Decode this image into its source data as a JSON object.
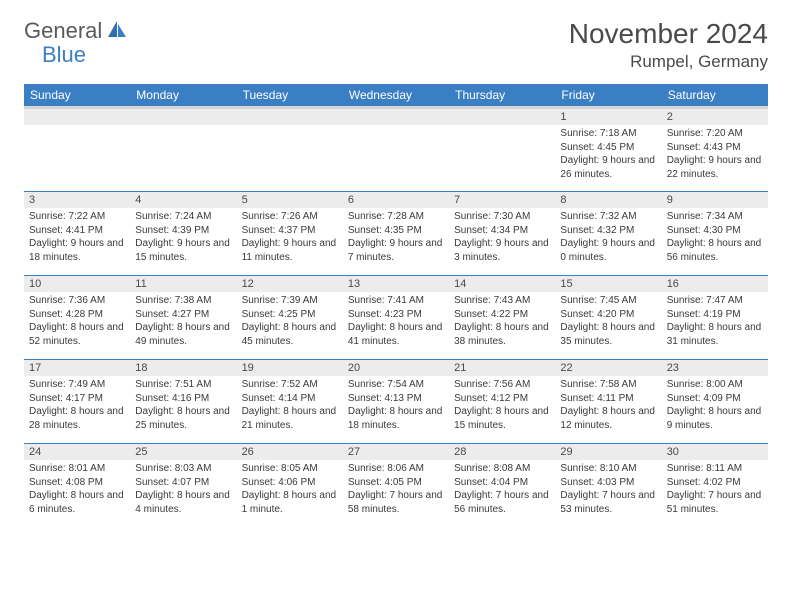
{
  "logo": {
    "part1": "General",
    "part2": "Blue"
  },
  "title": "November 2024",
  "location": "Rumpel, Germany",
  "colors": {
    "header_bg": "#3a7fc4",
    "header_text": "#ffffff",
    "daynum_bg": "#ececec",
    "border": "#3a7fc4",
    "logo_gray": "#5a5a5a",
    "logo_blue": "#3a7fc4"
  },
  "weekdays": [
    "Sunday",
    "Monday",
    "Tuesday",
    "Wednesday",
    "Thursday",
    "Friday",
    "Saturday"
  ],
  "weeks": [
    [
      null,
      null,
      null,
      null,
      null,
      {
        "n": "1",
        "sr": "7:18 AM",
        "ss": "4:45 PM",
        "dl": "9 hours and 26 minutes."
      },
      {
        "n": "2",
        "sr": "7:20 AM",
        "ss": "4:43 PM",
        "dl": "9 hours and 22 minutes."
      }
    ],
    [
      {
        "n": "3",
        "sr": "7:22 AM",
        "ss": "4:41 PM",
        "dl": "9 hours and 18 minutes."
      },
      {
        "n": "4",
        "sr": "7:24 AM",
        "ss": "4:39 PM",
        "dl": "9 hours and 15 minutes."
      },
      {
        "n": "5",
        "sr": "7:26 AM",
        "ss": "4:37 PM",
        "dl": "9 hours and 11 minutes."
      },
      {
        "n": "6",
        "sr": "7:28 AM",
        "ss": "4:35 PM",
        "dl": "9 hours and 7 minutes."
      },
      {
        "n": "7",
        "sr": "7:30 AM",
        "ss": "4:34 PM",
        "dl": "9 hours and 3 minutes."
      },
      {
        "n": "8",
        "sr": "7:32 AM",
        "ss": "4:32 PM",
        "dl": "9 hours and 0 minutes."
      },
      {
        "n": "9",
        "sr": "7:34 AM",
        "ss": "4:30 PM",
        "dl": "8 hours and 56 minutes."
      }
    ],
    [
      {
        "n": "10",
        "sr": "7:36 AM",
        "ss": "4:28 PM",
        "dl": "8 hours and 52 minutes."
      },
      {
        "n": "11",
        "sr": "7:38 AM",
        "ss": "4:27 PM",
        "dl": "8 hours and 49 minutes."
      },
      {
        "n": "12",
        "sr": "7:39 AM",
        "ss": "4:25 PM",
        "dl": "8 hours and 45 minutes."
      },
      {
        "n": "13",
        "sr": "7:41 AM",
        "ss": "4:23 PM",
        "dl": "8 hours and 41 minutes."
      },
      {
        "n": "14",
        "sr": "7:43 AM",
        "ss": "4:22 PM",
        "dl": "8 hours and 38 minutes."
      },
      {
        "n": "15",
        "sr": "7:45 AM",
        "ss": "4:20 PM",
        "dl": "8 hours and 35 minutes."
      },
      {
        "n": "16",
        "sr": "7:47 AM",
        "ss": "4:19 PM",
        "dl": "8 hours and 31 minutes."
      }
    ],
    [
      {
        "n": "17",
        "sr": "7:49 AM",
        "ss": "4:17 PM",
        "dl": "8 hours and 28 minutes."
      },
      {
        "n": "18",
        "sr": "7:51 AM",
        "ss": "4:16 PM",
        "dl": "8 hours and 25 minutes."
      },
      {
        "n": "19",
        "sr": "7:52 AM",
        "ss": "4:14 PM",
        "dl": "8 hours and 21 minutes."
      },
      {
        "n": "20",
        "sr": "7:54 AM",
        "ss": "4:13 PM",
        "dl": "8 hours and 18 minutes."
      },
      {
        "n": "21",
        "sr": "7:56 AM",
        "ss": "4:12 PM",
        "dl": "8 hours and 15 minutes."
      },
      {
        "n": "22",
        "sr": "7:58 AM",
        "ss": "4:11 PM",
        "dl": "8 hours and 12 minutes."
      },
      {
        "n": "23",
        "sr": "8:00 AM",
        "ss": "4:09 PM",
        "dl": "8 hours and 9 minutes."
      }
    ],
    [
      {
        "n": "24",
        "sr": "8:01 AM",
        "ss": "4:08 PM",
        "dl": "8 hours and 6 minutes."
      },
      {
        "n": "25",
        "sr": "8:03 AM",
        "ss": "4:07 PM",
        "dl": "8 hours and 4 minutes."
      },
      {
        "n": "26",
        "sr": "8:05 AM",
        "ss": "4:06 PM",
        "dl": "8 hours and 1 minute."
      },
      {
        "n": "27",
        "sr": "8:06 AM",
        "ss": "4:05 PM",
        "dl": "7 hours and 58 minutes."
      },
      {
        "n": "28",
        "sr": "8:08 AM",
        "ss": "4:04 PM",
        "dl": "7 hours and 56 minutes."
      },
      {
        "n": "29",
        "sr": "8:10 AM",
        "ss": "4:03 PM",
        "dl": "7 hours and 53 minutes."
      },
      {
        "n": "30",
        "sr": "8:11 AM",
        "ss": "4:02 PM",
        "dl": "7 hours and 51 minutes."
      }
    ]
  ],
  "labels": {
    "sunrise": "Sunrise:",
    "sunset": "Sunset:",
    "daylight": "Daylight:"
  }
}
